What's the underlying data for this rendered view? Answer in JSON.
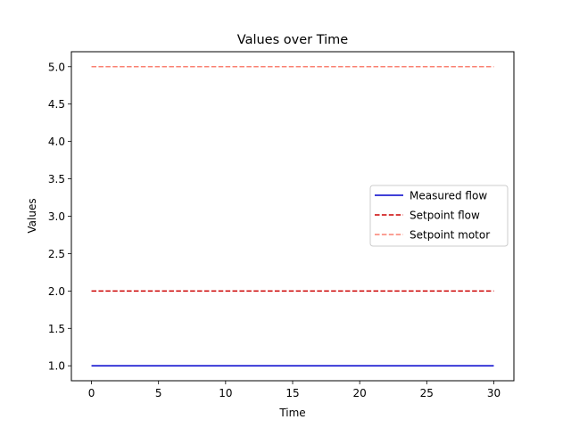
{
  "chart_data": {
    "type": "line",
    "title": "Values over Time",
    "xlabel": "Time",
    "ylabel": "Values",
    "xlim": [
      -1.5,
      31.5
    ],
    "ylim": [
      0.8,
      5.2
    ],
    "xticks": [
      0,
      5,
      10,
      15,
      20,
      25,
      30
    ],
    "xtick_labels": [
      "0",
      "5",
      "10",
      "15",
      "20",
      "25",
      "30"
    ],
    "yticks": [
      1.0,
      1.5,
      2.0,
      2.5,
      3.0,
      3.5,
      4.0,
      4.5,
      5.0
    ],
    "ytick_labels": [
      "1.0",
      "1.5",
      "2.0",
      "2.5",
      "3.0",
      "3.5",
      "4.0",
      "4.5",
      "5.0"
    ],
    "grid": false,
    "legend_position": "center-right",
    "series": [
      {
        "name": "Measured flow",
        "color": "#0000cc",
        "style": "solid",
        "x": [
          0,
          30
        ],
        "y": [
          1.0,
          1.0
        ]
      },
      {
        "name": "Setpoint flow",
        "color": "#cc0000",
        "style": "dashed",
        "x": [
          0,
          30
        ],
        "y": [
          2.0,
          2.0
        ]
      },
      {
        "name": "Setpoint motor",
        "color": "#fa8072",
        "style": "dashed",
        "x": [
          0,
          30
        ],
        "y": [
          5.0,
          5.0
        ]
      }
    ]
  }
}
